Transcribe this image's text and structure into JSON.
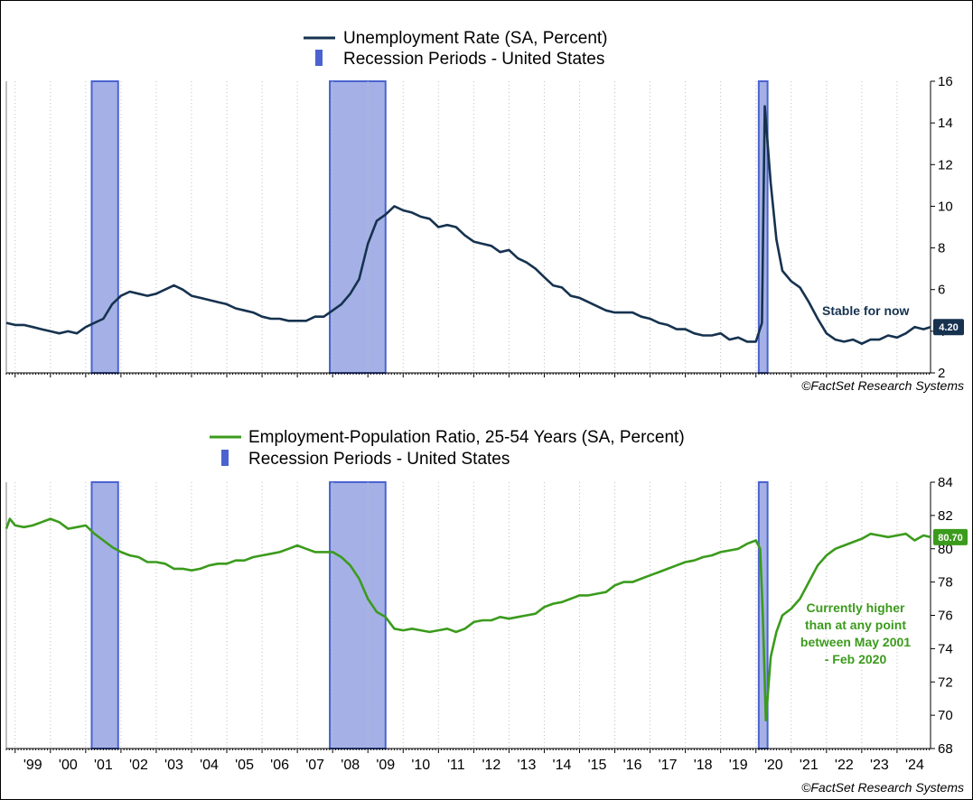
{
  "colors": {
    "unemployment_line": "#16324f",
    "epop_line": "#3b9b1c",
    "recession_fill": "#a5b1e6",
    "recession_edge": "#4a63d0",
    "grid": "#bfbfbf",
    "anno_green": "#3b9b1c",
    "anno_navy": "#16324f"
  },
  "chart_data": [
    {
      "id": "unemployment",
      "type": "line",
      "legend": [
        "Unemployment Rate (SA, Percent)",
        "Recession Periods - United States"
      ],
      "source": "©FactSet Research Systems",
      "ylim": [
        2,
        16
      ],
      "yticks": [
        2,
        4,
        6,
        8,
        10,
        12,
        14,
        16
      ],
      "y_tick_labels": [
        "2",
        "4",
        "6",
        "8",
        "10",
        "12",
        "14",
        "16"
      ],
      "xlim": [
        1998.75,
        2024.95
      ],
      "grid": "vertical",
      "legend_placement": "top-center",
      "recessions": [
        [
          2001.17,
          2001.92
        ],
        [
          2007.92,
          2009.5
        ],
        [
          2020.08,
          2020.33
        ]
      ],
      "last_value_label": "4.20",
      "annotation": "Stable for now",
      "series": [
        {
          "name": "Unemployment Rate (SA, Percent)",
          "points": [
            [
              1998.75,
              4.4
            ],
            [
              1999.0,
              4.3
            ],
            [
              1999.25,
              4.3
            ],
            [
              1999.5,
              4.2
            ],
            [
              1999.75,
              4.1
            ],
            [
              2000.0,
              4.0
            ],
            [
              2000.25,
              3.9
            ],
            [
              2000.5,
              4.0
            ],
            [
              2000.75,
              3.9
            ],
            [
              2001.0,
              4.2
            ],
            [
              2001.25,
              4.4
            ],
            [
              2001.5,
              4.6
            ],
            [
              2001.75,
              5.3
            ],
            [
              2002.0,
              5.7
            ],
            [
              2002.25,
              5.9
            ],
            [
              2002.5,
              5.8
            ],
            [
              2002.75,
              5.7
            ],
            [
              2003.0,
              5.8
            ],
            [
              2003.25,
              6.0
            ],
            [
              2003.5,
              6.2
            ],
            [
              2003.75,
              6.0
            ],
            [
              2004.0,
              5.7
            ],
            [
              2004.25,
              5.6
            ],
            [
              2004.5,
              5.5
            ],
            [
              2004.75,
              5.4
            ],
            [
              2005.0,
              5.3
            ],
            [
              2005.25,
              5.1
            ],
            [
              2005.5,
              5.0
            ],
            [
              2005.75,
              4.9
            ],
            [
              2006.0,
              4.7
            ],
            [
              2006.25,
              4.6
            ],
            [
              2006.5,
              4.6
            ],
            [
              2006.75,
              4.5
            ],
            [
              2007.0,
              4.5
            ],
            [
              2007.25,
              4.5
            ],
            [
              2007.5,
              4.7
            ],
            [
              2007.75,
              4.7
            ],
            [
              2008.0,
              5.0
            ],
            [
              2008.25,
              5.3
            ],
            [
              2008.5,
              5.8
            ],
            [
              2008.75,
              6.5
            ],
            [
              2009.0,
              8.2
            ],
            [
              2009.25,
              9.3
            ],
            [
              2009.5,
              9.6
            ],
            [
              2009.75,
              10.0
            ],
            [
              2010.0,
              9.8
            ],
            [
              2010.25,
              9.7
            ],
            [
              2010.5,
              9.5
            ],
            [
              2010.75,
              9.4
            ],
            [
              2011.0,
              9.0
            ],
            [
              2011.25,
              9.1
            ],
            [
              2011.5,
              9.0
            ],
            [
              2011.75,
              8.6
            ],
            [
              2012.0,
              8.3
            ],
            [
              2012.25,
              8.2
            ],
            [
              2012.5,
              8.1
            ],
            [
              2012.75,
              7.8
            ],
            [
              2013.0,
              7.9
            ],
            [
              2013.25,
              7.5
            ],
            [
              2013.5,
              7.3
            ],
            [
              2013.75,
              7.0
            ],
            [
              2014.0,
              6.6
            ],
            [
              2014.25,
              6.2
            ],
            [
              2014.5,
              6.1
            ],
            [
              2014.75,
              5.7
            ],
            [
              2015.0,
              5.6
            ],
            [
              2015.25,
              5.4
            ],
            [
              2015.5,
              5.2
            ],
            [
              2015.75,
              5.0
            ],
            [
              2016.0,
              4.9
            ],
            [
              2016.25,
              4.9
            ],
            [
              2016.5,
              4.9
            ],
            [
              2016.75,
              4.7
            ],
            [
              2017.0,
              4.6
            ],
            [
              2017.25,
              4.4
            ],
            [
              2017.5,
              4.3
            ],
            [
              2017.75,
              4.1
            ],
            [
              2018.0,
              4.1
            ],
            [
              2018.25,
              3.9
            ],
            [
              2018.5,
              3.8
            ],
            [
              2018.75,
              3.8
            ],
            [
              2019.0,
              3.9
            ],
            [
              2019.25,
              3.6
            ],
            [
              2019.5,
              3.7
            ],
            [
              2019.75,
              3.5
            ],
            [
              2020.0,
              3.5
            ],
            [
              2020.17,
              4.4
            ],
            [
              2020.25,
              14.8
            ],
            [
              2020.42,
              11.1
            ],
            [
              2020.58,
              8.4
            ],
            [
              2020.75,
              6.9
            ],
            [
              2021.0,
              6.4
            ],
            [
              2021.25,
              6.1
            ],
            [
              2021.5,
              5.4
            ],
            [
              2021.75,
              4.6
            ],
            [
              2022.0,
              3.9
            ],
            [
              2022.25,
              3.6
            ],
            [
              2022.5,
              3.5
            ],
            [
              2022.75,
              3.6
            ],
            [
              2023.0,
              3.4
            ],
            [
              2023.25,
              3.6
            ],
            [
              2023.5,
              3.6
            ],
            [
              2023.75,
              3.8
            ],
            [
              2024.0,
              3.7
            ],
            [
              2024.25,
              3.9
            ],
            [
              2024.5,
              4.2
            ],
            [
              2024.75,
              4.1
            ],
            [
              2024.95,
              4.2
            ]
          ]
        }
      ]
    },
    {
      "id": "epop",
      "type": "line",
      "legend": [
        "Employment-Population Ratio, 25-54 Years (SA, Percent)",
        "Recession Periods - United States"
      ],
      "source": "©FactSet Research Systems",
      "ylim": [
        68,
        84
      ],
      "yticks": [
        68,
        70,
        72,
        74,
        76,
        78,
        80,
        82,
        84
      ],
      "y_tick_labels": [
        "68",
        "70",
        "72",
        "74",
        "76",
        "78",
        "80",
        "82",
        "84"
      ],
      "xlim": [
        1998.75,
        2024.95
      ],
      "grid": "vertical",
      "legend_placement": "top-center",
      "recessions": [
        [
          2001.17,
          2001.92
        ],
        [
          2007.92,
          2009.5
        ],
        [
          2020.08,
          2020.33
        ]
      ],
      "last_value_label": "80.70",
      "annotation": [
        "Currently higher",
        "than at any point",
        "between May 2001",
        "- Feb 2020"
      ],
      "x_tick_labels": [
        "'99",
        "'00",
        "'01",
        "'02",
        "'03",
        "'04",
        "'05",
        "'06",
        "'07",
        "'08",
        "'09",
        "'10",
        "'11",
        "'12",
        "'13",
        "'14",
        "'15",
        "'16",
        "'17",
        "'18",
        "'19",
        "'20",
        "'21",
        "'22",
        "'23",
        "'24"
      ],
      "series": [
        {
          "name": "Employment-Population Ratio, 25-54 Years (SA, Percent)",
          "points": [
            [
              1998.75,
              81.2
            ],
            [
              1998.85,
              81.8
            ],
            [
              1999.0,
              81.4
            ],
            [
              1999.25,
              81.3
            ],
            [
              1999.5,
              81.4
            ],
            [
              1999.75,
              81.6
            ],
            [
              2000.0,
              81.8
            ],
            [
              2000.25,
              81.6
            ],
            [
              2000.5,
              81.2
            ],
            [
              2000.75,
              81.3
            ],
            [
              2001.0,
              81.4
            ],
            [
              2001.25,
              80.9
            ],
            [
              2001.5,
              80.5
            ],
            [
              2001.75,
              80.1
            ],
            [
              2002.0,
              79.8
            ],
            [
              2002.25,
              79.6
            ],
            [
              2002.5,
              79.5
            ],
            [
              2002.75,
              79.2
            ],
            [
              2003.0,
              79.2
            ],
            [
              2003.25,
              79.1
            ],
            [
              2003.5,
              78.8
            ],
            [
              2003.75,
              78.8
            ],
            [
              2004.0,
              78.7
            ],
            [
              2004.25,
              78.8
            ],
            [
              2004.5,
              79.0
            ],
            [
              2004.75,
              79.1
            ],
            [
              2005.0,
              79.1
            ],
            [
              2005.25,
              79.3
            ],
            [
              2005.5,
              79.3
            ],
            [
              2005.75,
              79.5
            ],
            [
              2006.0,
              79.6
            ],
            [
              2006.25,
              79.7
            ],
            [
              2006.5,
              79.8
            ],
            [
              2006.75,
              80.0
            ],
            [
              2007.0,
              80.2
            ],
            [
              2007.25,
              80.0
            ],
            [
              2007.5,
              79.8
            ],
            [
              2007.75,
              79.8
            ],
            [
              2008.0,
              79.8
            ],
            [
              2008.25,
              79.5
            ],
            [
              2008.5,
              79.0
            ],
            [
              2008.75,
              78.2
            ],
            [
              2009.0,
              77.0
            ],
            [
              2009.25,
              76.2
            ],
            [
              2009.5,
              75.9
            ],
            [
              2009.75,
              75.2
            ],
            [
              2010.0,
              75.1
            ],
            [
              2010.25,
              75.2
            ],
            [
              2010.5,
              75.1
            ],
            [
              2010.75,
              75.0
            ],
            [
              2011.0,
              75.1
            ],
            [
              2011.25,
              75.2
            ],
            [
              2011.5,
              75.0
            ],
            [
              2011.75,
              75.2
            ],
            [
              2012.0,
              75.6
            ],
            [
              2012.25,
              75.7
            ],
            [
              2012.5,
              75.7
            ],
            [
              2012.75,
              75.9
            ],
            [
              2013.0,
              75.8
            ],
            [
              2013.25,
              75.9
            ],
            [
              2013.5,
              76.0
            ],
            [
              2013.75,
              76.1
            ],
            [
              2014.0,
              76.5
            ],
            [
              2014.25,
              76.7
            ],
            [
              2014.5,
              76.8
            ],
            [
              2014.75,
              77.0
            ],
            [
              2015.0,
              77.2
            ],
            [
              2015.25,
              77.2
            ],
            [
              2015.5,
              77.3
            ],
            [
              2015.75,
              77.4
            ],
            [
              2016.0,
              77.8
            ],
            [
              2016.25,
              78.0
            ],
            [
              2016.5,
              78.0
            ],
            [
              2016.75,
              78.2
            ],
            [
              2017.0,
              78.4
            ],
            [
              2017.25,
              78.6
            ],
            [
              2017.5,
              78.8
            ],
            [
              2017.75,
              79.0
            ],
            [
              2018.0,
              79.2
            ],
            [
              2018.25,
              79.3
            ],
            [
              2018.5,
              79.5
            ],
            [
              2018.75,
              79.6
            ],
            [
              2019.0,
              79.8
            ],
            [
              2019.25,
              79.9
            ],
            [
              2019.5,
              80.0
            ],
            [
              2019.75,
              80.3
            ],
            [
              2020.0,
              80.5
            ],
            [
              2020.12,
              80.0
            ],
            [
              2020.2,
              75.8
            ],
            [
              2020.28,
              69.7
            ],
            [
              2020.42,
              73.5
            ],
            [
              2020.58,
              75.0
            ],
            [
              2020.75,
              76.0
            ],
            [
              2021.0,
              76.4
            ],
            [
              2021.25,
              77.0
            ],
            [
              2021.5,
              78.0
            ],
            [
              2021.75,
              79.0
            ],
            [
              2022.0,
              79.6
            ],
            [
              2022.25,
              80.0
            ],
            [
              2022.5,
              80.2
            ],
            [
              2022.75,
              80.4
            ],
            [
              2023.0,
              80.6
            ],
            [
              2023.25,
              80.9
            ],
            [
              2023.5,
              80.8
            ],
            [
              2023.75,
              80.7
            ],
            [
              2024.0,
              80.8
            ],
            [
              2024.25,
              80.9
            ],
            [
              2024.5,
              80.5
            ],
            [
              2024.75,
              80.8
            ],
            [
              2024.95,
              80.7
            ]
          ]
        }
      ]
    }
  ]
}
